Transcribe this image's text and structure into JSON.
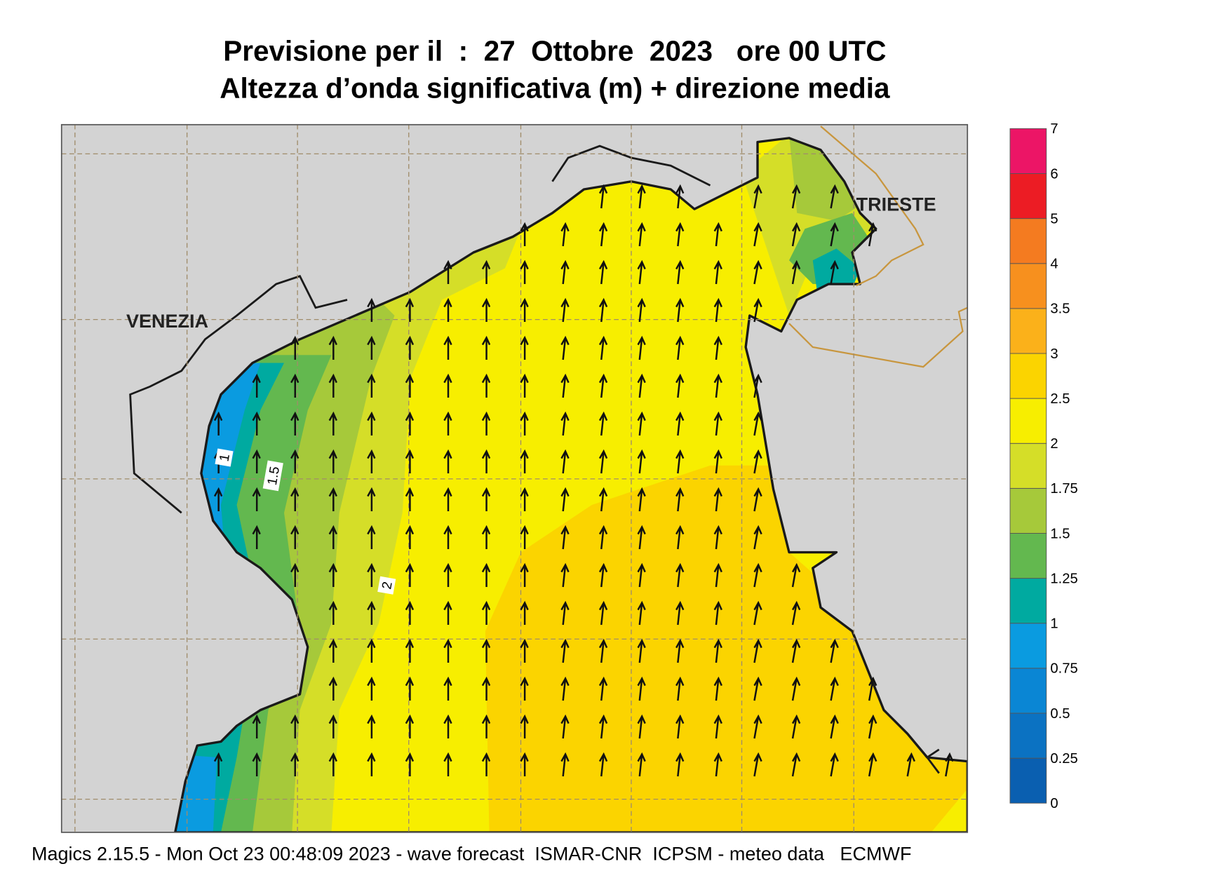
{
  "title": [
    "Previsione per il  :  27  Ottobre  2023   ore 00 UTC",
    "Altezza d’onda significativa (m) + direzione media"
  ],
  "map": {
    "labels": [
      "VENEZIA",
      "TRIESTE"
    ],
    "contour_labels": [
      "1",
      "1.5",
      "2"
    ]
  },
  "colorbar": {
    "levels": [
      0,
      0.25,
      0.5,
      0.75,
      1,
      1.25,
      1.5,
      1.75,
      2,
      2.5,
      3,
      3.5,
      4,
      5,
      6,
      7
    ],
    "colors": [
      "#0a5fb0",
      "#0b72c2",
      "#0a86d4",
      "#0a9be0",
      "#00aaa0",
      "#63b84f",
      "#a6c93a",
      "#d5de28",
      "#f7ee00",
      "#fbd400",
      "#fbb11a",
      "#f7901e",
      "#f47b20",
      "#ec1c24",
      "#ec1566"
    ]
  },
  "footer": "Magics 2.15.5 - Mon Oct 23 00:48:09 2023 - wave forecast  ISMAR-CNR  ICPSM - meteo data   ECMWF"
}
